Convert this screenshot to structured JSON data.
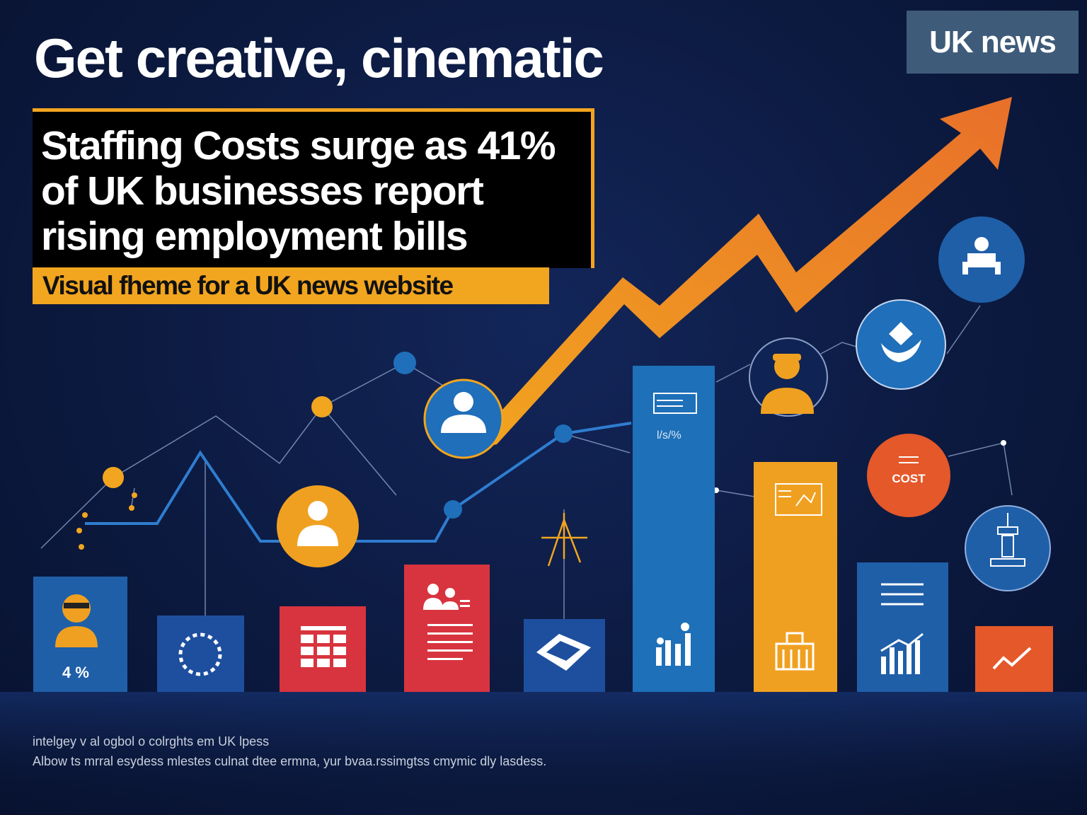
{
  "header": {
    "headline": "Get creative, cinematic",
    "badge": "UK news"
  },
  "title_box": {
    "title": "Staffing Costs surge as 41%\nof UK businesses report\nrising employment bills"
  },
  "subtitle": "Visual fheme for a UK news website",
  "bars": [
    {
      "icon": "worker-icon",
      "color": "#1f5fa8",
      "label": "4 %"
    },
    {
      "icon": "gear-icon",
      "color": "#1f5fa8"
    },
    {
      "icon": "calendar-grid-icon",
      "color": "#d8343f"
    },
    {
      "icon": "document-icon",
      "color": "#d8343f"
    },
    {
      "icon": "money-icon",
      "color": "#1f5fa8"
    },
    {
      "icon": "bar-chart-icon",
      "color": "#1e70b8",
      "label": "l/s/%"
    },
    {
      "icon": "building-icon",
      "color": "#f0a020"
    },
    {
      "icon": "growth-chart-icon",
      "color": "#1f5fa8"
    },
    {
      "icon": "trend-icon",
      "color": "#e4582a"
    }
  ],
  "circles": [
    {
      "icon": "worker-icon",
      "color": "#f0a020"
    },
    {
      "icon": "person-icon",
      "color": "#1f6fba"
    },
    {
      "icon": "worker-icon",
      "color": "#f0a020"
    },
    {
      "icon": "handshake-icon",
      "color": "#1f6fba"
    },
    {
      "icon": "person-icon",
      "color": "#1f5fa8"
    },
    {
      "icon": "cost-icon",
      "color": "#e4582a",
      "label": "COST"
    },
    {
      "icon": "machine-icon",
      "color": "#1f5fa8"
    }
  ],
  "footnotes": {
    "line1": "intelgey v al ogbol o colrghts em UK lpess",
    "line2": "Albow ts mrral esydess mlestes culnat dtee ermna, yur bvaa.rssimgtss cmymic dly lasdess."
  },
  "colors": {
    "background": "#0c1a40",
    "accent_orange": "#f2a51f",
    "accent_blue": "#1f5fa8",
    "accent_red": "#d8343f"
  }
}
